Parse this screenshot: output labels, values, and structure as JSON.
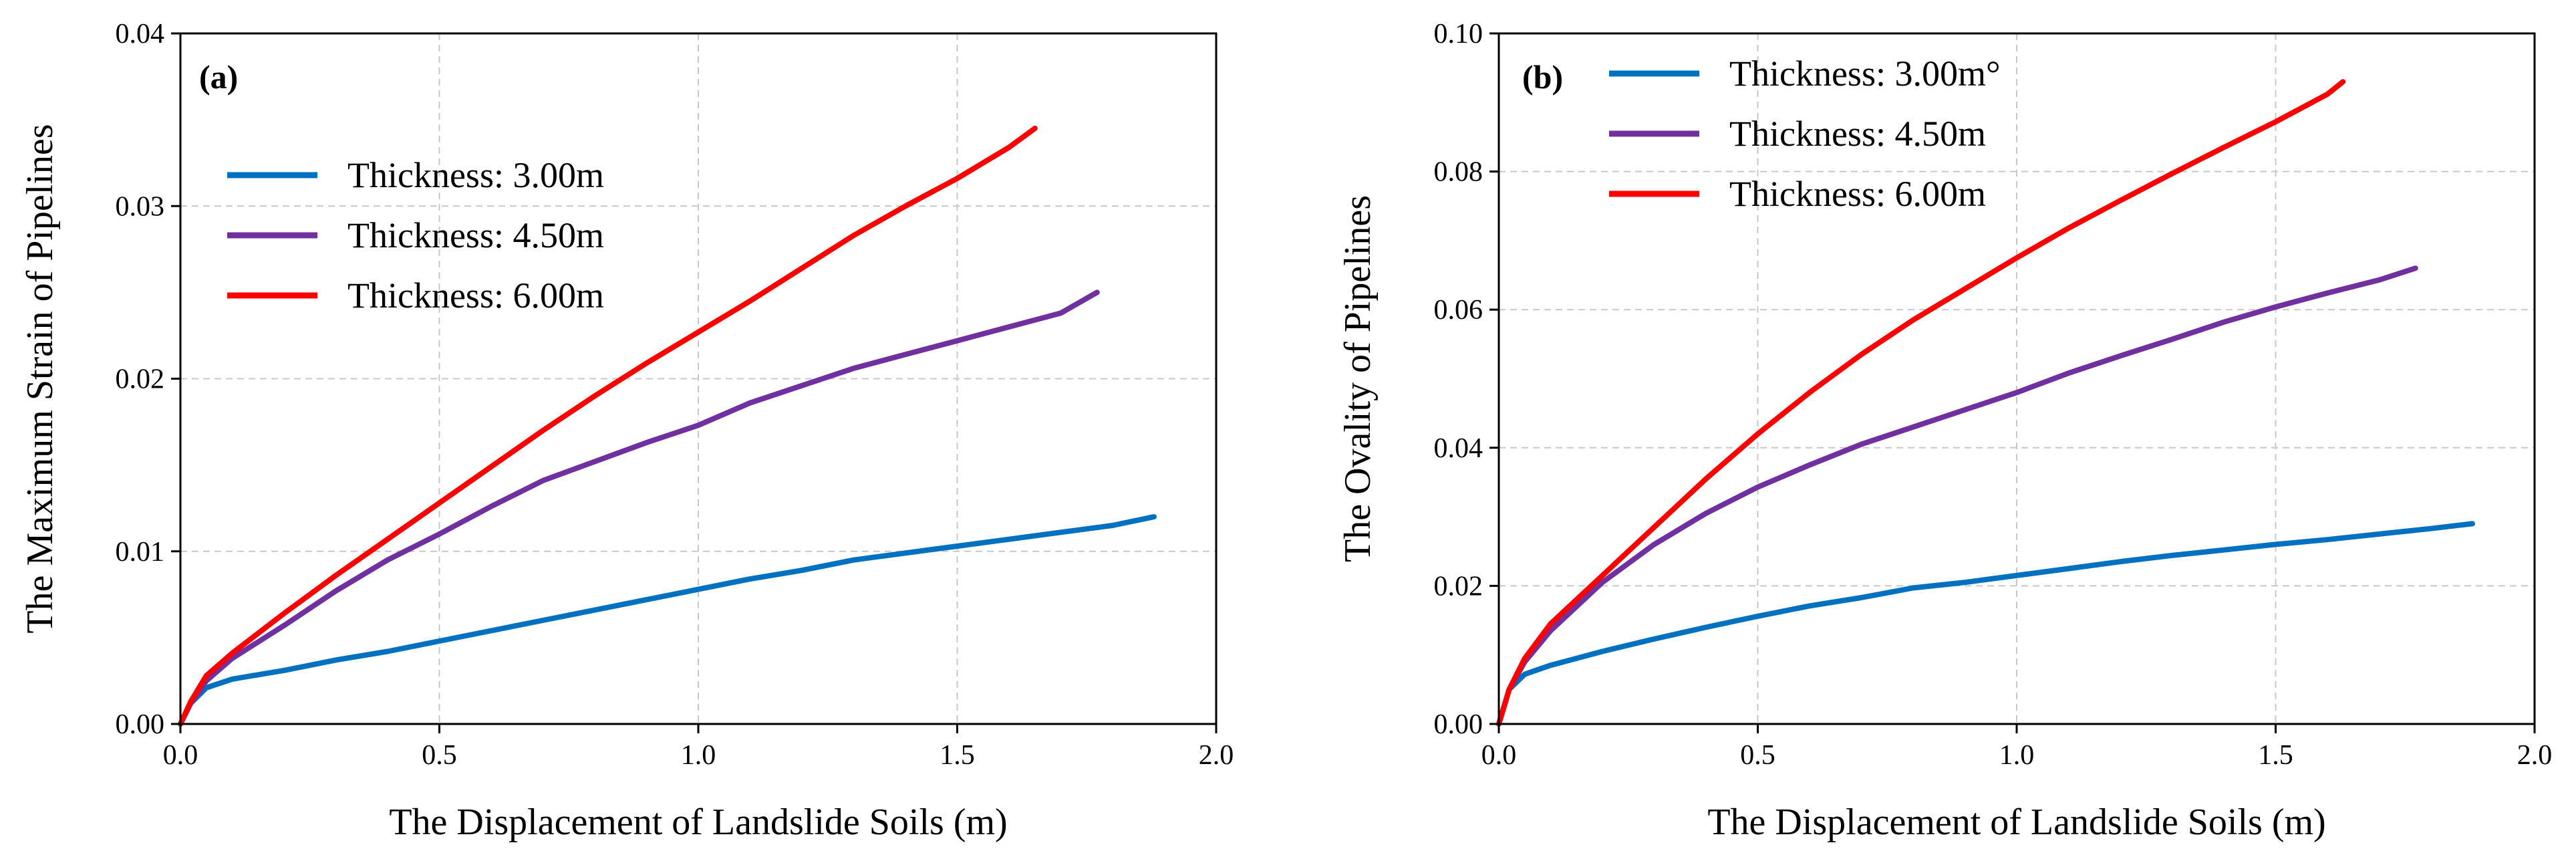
{
  "chart_data": [
    {
      "type": "line",
      "panel_label": "(a)",
      "xlabel": "The Displacement of Landslide Soils (m)",
      "ylabel": "The Maximum Strain of Pipelines",
      "xlim": [
        0,
        2.0
      ],
      "ylim": [
        0,
        0.04
      ],
      "x_ticks": [
        0,
        0.5,
        1.0,
        1.5,
        2.0
      ],
      "x_tick_labels": [
        "0.0",
        "0.5",
        "1.0",
        "1.5",
        "2.0"
      ],
      "y_ticks": [
        0,
        0.01,
        0.02,
        0.03,
        0.04
      ],
      "y_tick_labels": [
        "0.00",
        "0.01",
        "0.02",
        "0.03",
        "0.04"
      ],
      "grid": true,
      "legend_position": "upper-left",
      "series": [
        {
          "name": "Thickness: 3.00m",
          "color": "#0070c0",
          "x": [
            0,
            0.02,
            0.05,
            0.1,
            0.2,
            0.3,
            0.4,
            0.5,
            0.6,
            0.7,
            0.8,
            0.9,
            1.0,
            1.1,
            1.2,
            1.3,
            1.4,
            1.5,
            1.6,
            1.7,
            1.8,
            1.88
          ],
          "y": [
            0,
            0.0012,
            0.0021,
            0.0026,
            0.0031,
            0.0037,
            0.0042,
            0.0048,
            0.0054,
            0.006,
            0.0066,
            0.0072,
            0.0078,
            0.0084,
            0.0089,
            0.0095,
            0.0099,
            0.0103,
            0.0107,
            0.0111,
            0.0115,
            0.012
          ]
        },
        {
          "name": "Thickness: 4.50m",
          "color": "#7030a0",
          "x": [
            0,
            0.02,
            0.05,
            0.1,
            0.2,
            0.3,
            0.4,
            0.5,
            0.6,
            0.7,
            0.8,
            0.9,
            1.0,
            1.1,
            1.2,
            1.3,
            1.4,
            1.5,
            1.6,
            1.7,
            1.77
          ],
          "y": [
            0,
            0.0012,
            0.0025,
            0.0038,
            0.0057,
            0.0077,
            0.0095,
            0.011,
            0.0126,
            0.0141,
            0.0152,
            0.0163,
            0.0173,
            0.0186,
            0.0196,
            0.0206,
            0.0214,
            0.0222,
            0.023,
            0.0238,
            0.025
          ]
        },
        {
          "name": "Thickness: 6.00m",
          "color": "#ff0000",
          "x": [
            0,
            0.02,
            0.05,
            0.1,
            0.2,
            0.3,
            0.4,
            0.5,
            0.6,
            0.7,
            0.8,
            0.9,
            1.0,
            1.1,
            1.2,
            1.3,
            1.4,
            1.5,
            1.6,
            1.65
          ],
          "y": [
            0,
            0.0013,
            0.0028,
            0.0041,
            0.0064,
            0.0086,
            0.0107,
            0.0128,
            0.0149,
            0.017,
            0.019,
            0.0209,
            0.0227,
            0.0245,
            0.0264,
            0.0283,
            0.03,
            0.0316,
            0.0334,
            0.0345
          ]
        }
      ]
    },
    {
      "type": "line",
      "panel_label": "(b)",
      "xlabel": "The Displacement of Landslide Soils (m)",
      "ylabel": "The Ovality of Pipelines",
      "xlim": [
        0,
        2.0
      ],
      "ylim": [
        0,
        0.1
      ],
      "x_ticks": [
        0,
        0.5,
        1.0,
        1.5,
        2.0
      ],
      "x_tick_labels": [
        "0.0",
        "0.5",
        "1.0",
        "1.5",
        "2.0"
      ],
      "y_ticks": [
        0,
        0.02,
        0.04,
        0.06,
        0.08,
        0.1
      ],
      "y_tick_labels": [
        "0.00",
        "0.02",
        "0.04",
        "0.06",
        "0.08",
        "0.10"
      ],
      "grid": true,
      "legend_position": "upper-left",
      "series": [
        {
          "name": "Thickness: 3.00m°",
          "color": "#0070c0",
          "x": [
            0,
            0.02,
            0.05,
            0.1,
            0.2,
            0.3,
            0.4,
            0.5,
            0.6,
            0.7,
            0.8,
            0.9,
            1.0,
            1.1,
            1.2,
            1.3,
            1.4,
            1.5,
            1.6,
            1.7,
            1.8,
            1.88
          ],
          "y": [
            0,
            0.005,
            0.0072,
            0.0085,
            0.0105,
            0.0123,
            0.014,
            0.0156,
            0.0171,
            0.0183,
            0.0197,
            0.0205,
            0.0215,
            0.0225,
            0.0235,
            0.0244,
            0.0252,
            0.026,
            0.0267,
            0.0275,
            0.0283,
            0.029
          ]
        },
        {
          "name": "Thickness: 4.50m",
          "color": "#7030a0",
          "x": [
            0,
            0.02,
            0.05,
            0.1,
            0.2,
            0.3,
            0.4,
            0.5,
            0.6,
            0.7,
            0.8,
            0.9,
            1.0,
            1.1,
            1.2,
            1.3,
            1.4,
            1.5,
            1.6,
            1.7,
            1.77
          ],
          "y": [
            0,
            0.005,
            0.009,
            0.0135,
            0.0205,
            0.026,
            0.0305,
            0.0343,
            0.0375,
            0.0405,
            0.043,
            0.0455,
            0.048,
            0.0508,
            0.0533,
            0.0557,
            0.0582,
            0.0604,
            0.0624,
            0.0643,
            0.066
          ]
        },
        {
          "name": "Thickness: 6.00m",
          "color": "#ff0000",
          "x": [
            0,
            0.02,
            0.05,
            0.1,
            0.2,
            0.3,
            0.4,
            0.5,
            0.6,
            0.7,
            0.8,
            0.9,
            1.0,
            1.1,
            1.2,
            1.3,
            1.4,
            1.5,
            1.6,
            1.63
          ],
          "y": [
            0,
            0.005,
            0.0095,
            0.0145,
            0.0215,
            0.0285,
            0.0355,
            0.042,
            0.048,
            0.0535,
            0.0585,
            0.063,
            0.0675,
            0.0718,
            0.0758,
            0.0797,
            0.0835,
            0.0872,
            0.0912,
            0.093
          ]
        }
      ]
    }
  ]
}
